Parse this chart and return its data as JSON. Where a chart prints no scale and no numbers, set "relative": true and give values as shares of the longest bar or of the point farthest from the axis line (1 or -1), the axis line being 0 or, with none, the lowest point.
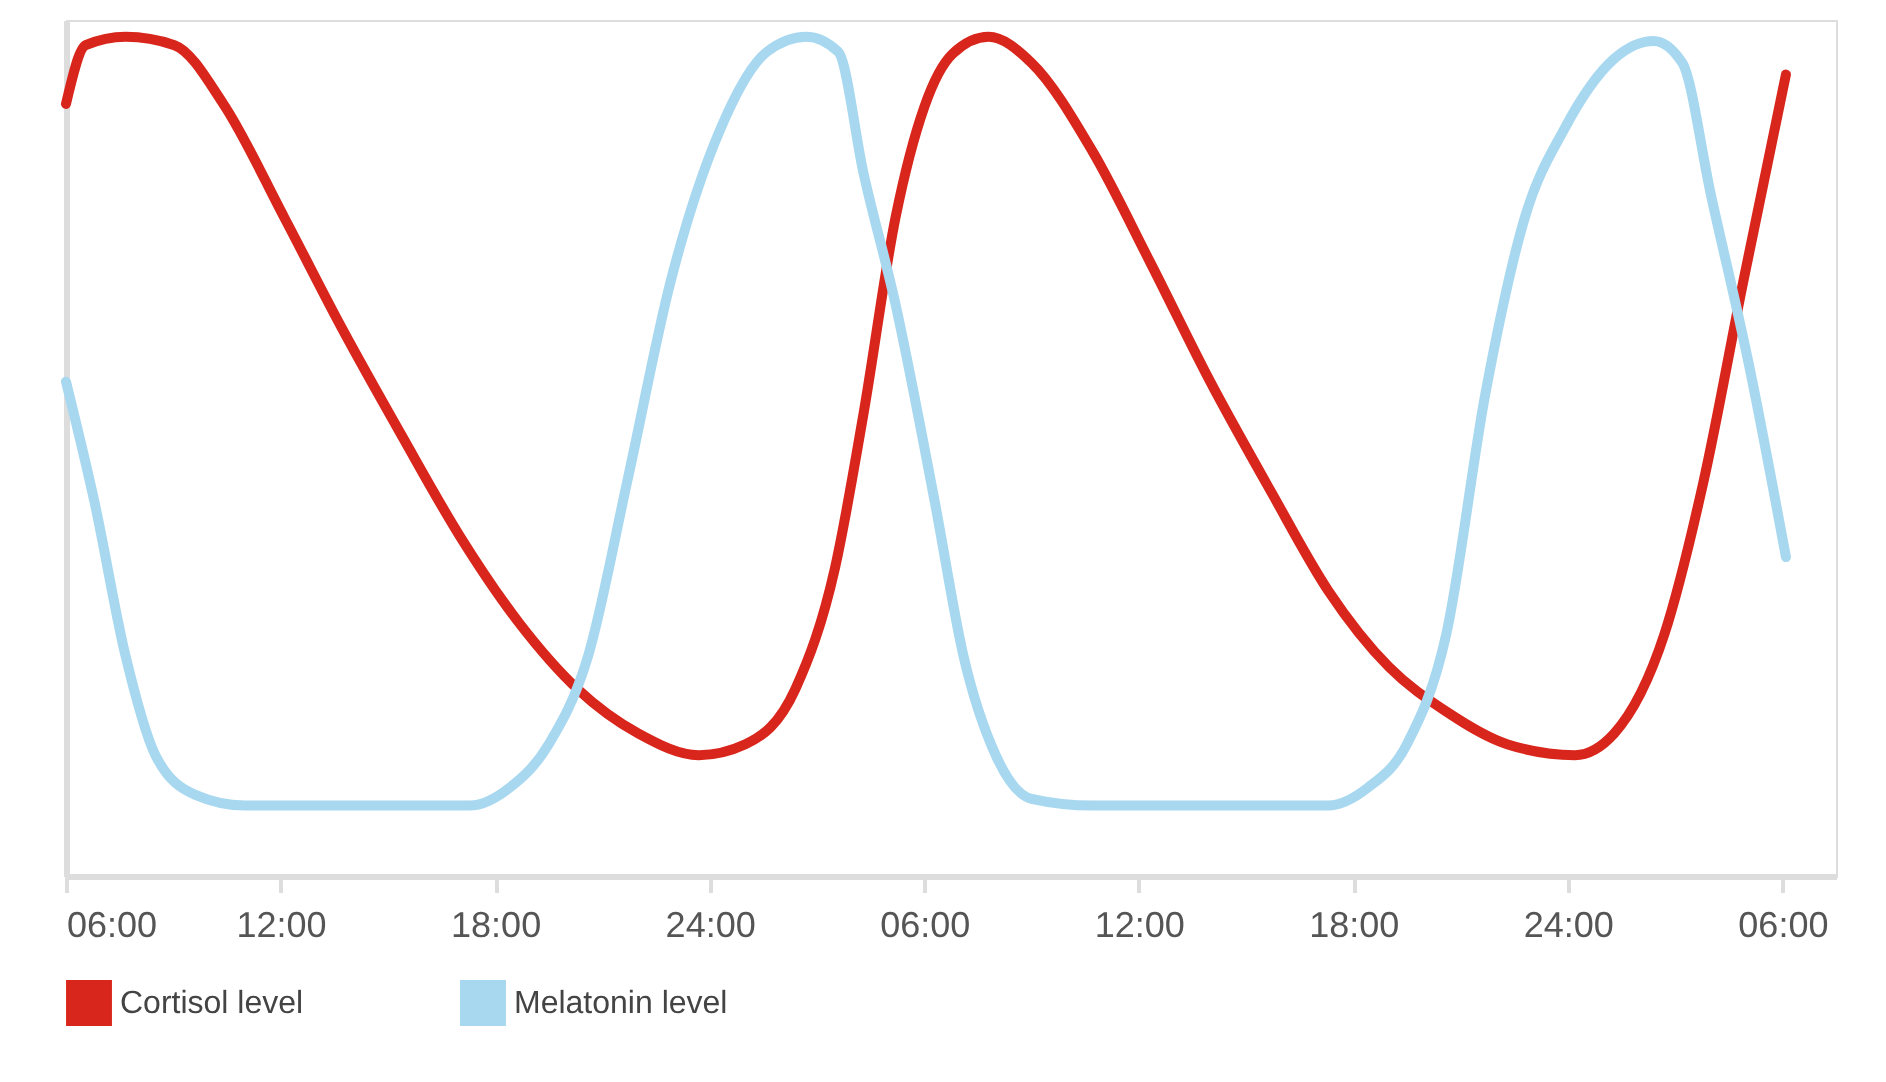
{
  "chart_data": {
    "type": "line",
    "relative": true,
    "legend": "bottom",
    "grid": false,
    "marker": "none",
    "line_style": "solid",
    "xlim": [
      "2000-01-01T06:00",
      "2000-01-03T07:30"
    ],
    "xticks": [
      {
        "value": "2000-01-01T06:00",
        "label": "06:00"
      },
      {
        "value": "2000-01-01T12:00",
        "label": "12:00"
      },
      {
        "value": "2000-01-01T18:00",
        "label": "18:00"
      },
      {
        "value": "2000-01-02T00:00",
        "label": "24:00"
      },
      {
        "value": "2000-01-02T06:00",
        "label": "06:00"
      },
      {
        "value": "2000-01-02T12:00",
        "label": "12:00"
      },
      {
        "value": "2000-01-02T18:00",
        "label": "18:00"
      },
      {
        "value": "2000-01-03T00:00",
        "label": "24:00"
      },
      {
        "value": "2000-01-03T06:00",
        "label": "06:00"
      }
    ],
    "series": [
      {
        "name": "Cortisol level",
        "color": "#d9261c",
        "x": [
          "2000-01-01T06:00",
          "2000-01-01T06:33",
          "2000-01-01T07:40",
          "2000-01-01T09:02",
          "2000-01-01T10:24",
          "2000-01-01T12:06",
          "2000-01-01T13:42",
          "2000-01-01T15:24",
          "2000-01-01T17:00",
          "2000-01-01T18:42",
          "2000-01-01T20:18",
          "2000-01-01T22:00",
          "2000-01-01T23:42",
          "2000-01-02T01:00",
          "2000-01-02T02:24",
          "2000-01-02T03:30",
          "2000-01-02T04:18",
          "2000-01-02T05:12",
          "2000-01-02T06:00",
          "2000-01-02T06:48",
          "2000-01-02T07:48",
          "2000-01-02T09:00",
          "2000-01-02T10:42",
          "2000-01-02T12:18",
          "2000-01-02T14:00",
          "2000-01-02T15:42",
          "2000-01-02T17:18",
          "2000-01-02T19:00",
          "2000-01-02T20:36",
          "2000-01-02T22:18",
          "2000-01-03T00:12",
          "2000-01-03T01:18",
          "2000-01-03T02:42",
          "2000-01-03T03:48",
          "2000-01-03T04:54",
          "2000-01-03T06:06"
        ],
        "values": [
          0.92,
          0.99,
          1.0,
          0.99,
          0.92,
          0.785,
          0.654,
          0.524,
          0.406,
          0.3,
          0.223,
          0.17,
          0.144,
          0.157,
          0.223,
          0.366,
          0.55,
          0.785,
          0.916,
          0.98,
          1.0,
          0.969,
          0.864,
          0.733,
          0.589,
          0.458,
          0.34,
          0.249,
          0.196,
          0.157,
          0.144,
          0.17,
          0.288,
          0.471,
          0.707,
          0.955
        ]
      },
      {
        "name": "Melatonin  level",
        "color": "#a8d8f0",
        "x": [
          "2000-01-01T06:00",
          "2000-01-01T06:48",
          "2000-01-01T07:40",
          "2000-01-01T08:30",
          "2000-01-01T09:36",
          "2000-01-01T11:00",
          "2000-01-01T17:18",
          "2000-01-01T18:24",
          "2000-01-01T19:30",
          "2000-01-01T20:36",
          "2000-01-01T21:42",
          "2000-01-01T22:54",
          "2000-01-02T00:18",
          "2000-01-02T01:36",
          "2000-01-02T02:42",
          "2000-01-02T03:36",
          "2000-01-02T04:18",
          "2000-01-02T05:12",
          "2000-01-02T06:18",
          "2000-01-02T07:06",
          "2000-01-02T08:00",
          "2000-01-02T09:00",
          "2000-01-02T10:42",
          "2000-01-02T17:18",
          "2000-01-02T18:24",
          "2000-01-02T19:30",
          "2000-01-02T20:36",
          "2000-01-02T21:42",
          "2000-01-02T22:48",
          "2000-01-02T23:54",
          "2000-01-03T01:18",
          "2000-01-03T02:24",
          "2000-01-03T03:12",
          "2000-01-03T04:00",
          "2000-01-03T05:06",
          "2000-01-03T06:06"
        ],
        "values": [
          0.589,
          0.445,
          0.262,
          0.144,
          0.097,
          0.084,
          0.084,
          0.105,
          0.157,
          0.262,
          0.471,
          0.707,
          0.89,
          0.982,
          1.0,
          0.982,
          0.838,
          0.681,
          0.445,
          0.262,
          0.144,
          0.092,
          0.084,
          0.084,
          0.105,
          0.157,
          0.288,
          0.576,
          0.785,
          0.89,
          0.974,
          0.995,
          0.969,
          0.812,
          0.602,
          0.38
        ]
      }
    ]
  }
}
